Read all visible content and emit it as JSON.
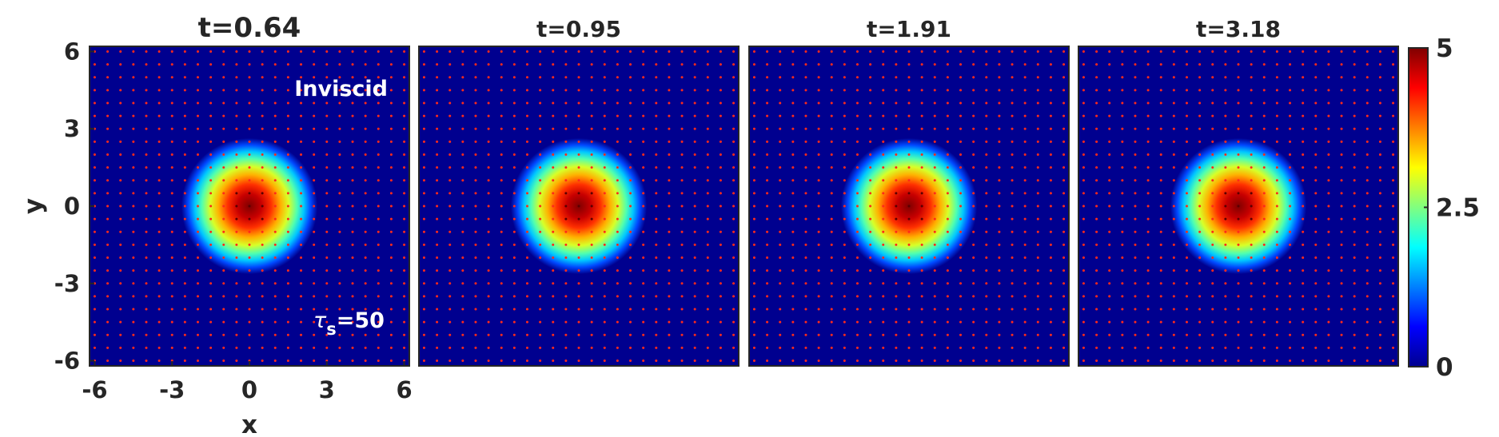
{
  "chart_data": {
    "type": "heatmap",
    "panels": [
      {
        "title": "t=0.64",
        "center": [
          0.0,
          0.0
        ]
      },
      {
        "title": "t=0.95",
        "center": [
          0.0,
          0.0
        ]
      },
      {
        "title": "t=1.91",
        "center": [
          0.0,
          0.0
        ]
      },
      {
        "title": "t=3.18",
        "center": [
          0.0,
          0.0
        ]
      }
    ],
    "annotations": {
      "label": "Inviscid",
      "tau_symbol": "τ",
      "tau_sub": "s",
      "tau_value": "=50"
    },
    "xlabel": "x",
    "ylabel": "y",
    "xlim": [
      -6.2,
      6.2
    ],
    "ylim": [
      -6.2,
      6.2
    ],
    "xticks": [
      -6,
      -3,
      0,
      3,
      6
    ],
    "yticks": [
      -6,
      -3,
      0,
      3,
      6
    ],
    "xtick_labels": [
      "-6",
      "-3",
      "0",
      "3",
      "6"
    ],
    "ytick_labels": [
      "-6",
      "-3",
      "0",
      "3",
      "6"
    ],
    "colorbar": {
      "min": 0,
      "max": 5,
      "ticks": [
        0,
        2.5,
        5
      ],
      "tick_labels": [
        "0",
        "2.5",
        "5"
      ],
      "colormap": "jet"
    },
    "field": {
      "peak_value": 5,
      "radius": 1.2,
      "grid_spacing": 0.5
    },
    "colors": {
      "background": "#00008f",
      "particle": "#ff2a1a"
    }
  }
}
